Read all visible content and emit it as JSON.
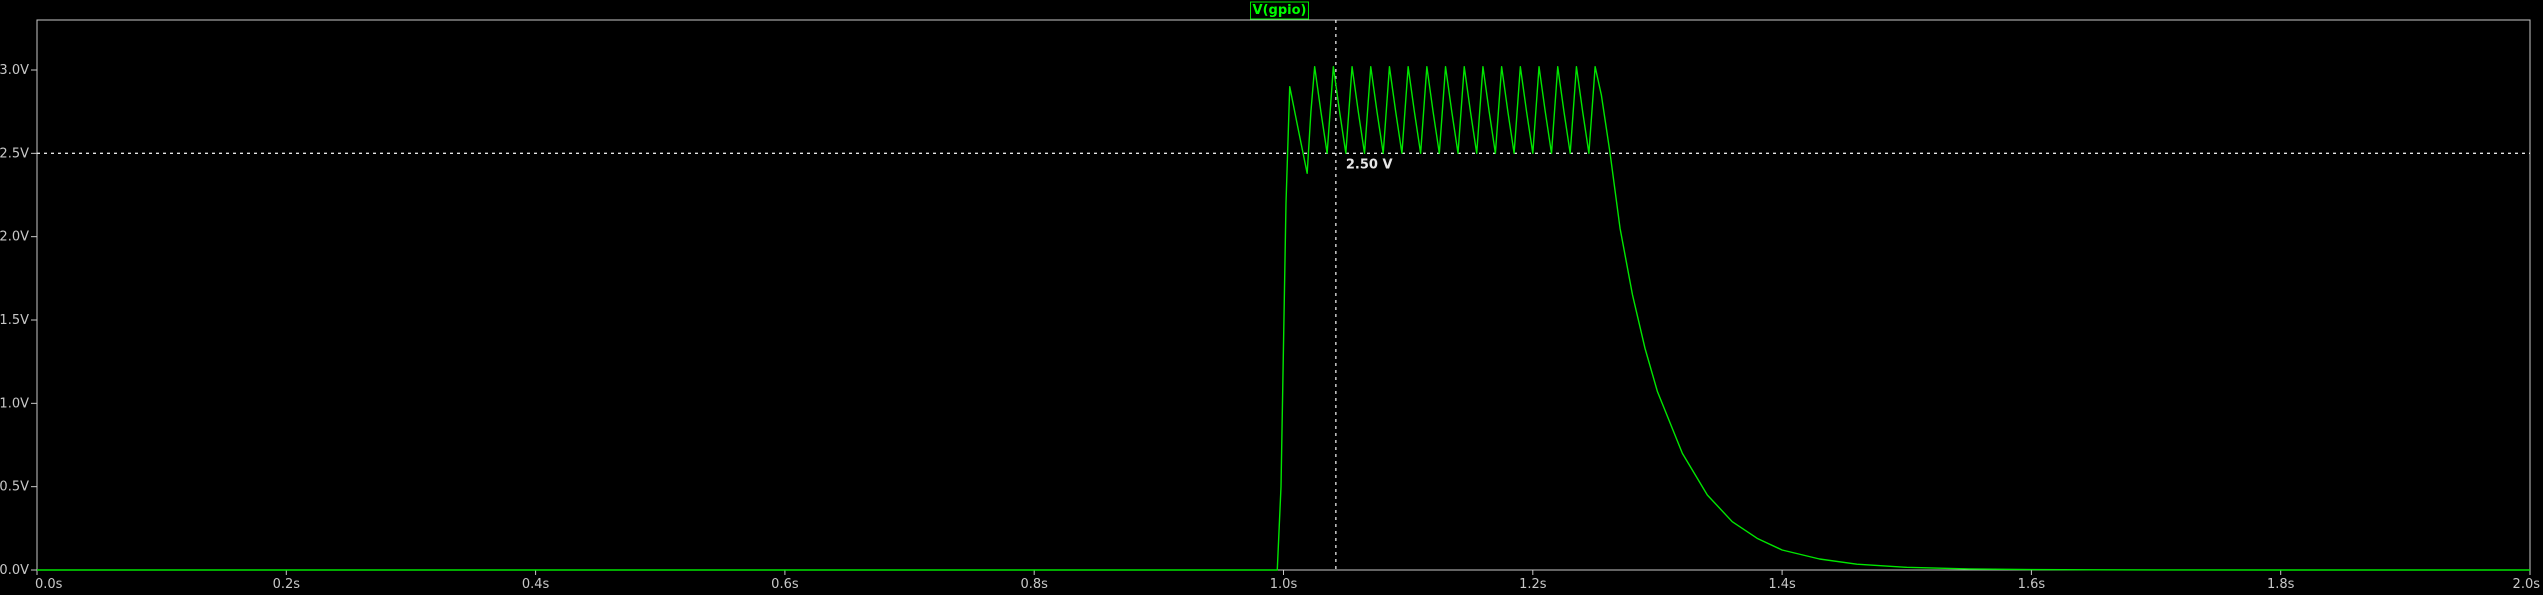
{
  "chart_data": {
    "type": "line",
    "title": "V(gpio)",
    "xlim": [
      0,
      2.0
    ],
    "ylim": [
      0,
      3.3
    ],
    "x_ticks": [
      0,
      0.2,
      0.4,
      0.6,
      0.8,
      1.0,
      1.2,
      1.4,
      1.6,
      1.8,
      2.0
    ],
    "x_tick_labels": [
      "0.0s",
      "0.2s",
      "0.4s",
      "0.6s",
      "0.8s",
      "1.0s",
      "1.2s",
      "1.4s",
      "1.6s",
      "1.8s",
      "2.0s"
    ],
    "y_ticks": [
      0,
      0.5,
      1.0,
      1.5,
      2.0,
      2.5,
      3.0
    ],
    "y_tick_labels": [
      "0.0V",
      "0.5V",
      "1.0V",
      "1.5V",
      "2.0V",
      "2.5V",
      "3.0V"
    ],
    "grid": false,
    "colors": {
      "background": "#000000",
      "trace": "#00e600",
      "axes": "#c8c8c8",
      "cursor": "#e6e6e6"
    },
    "series": [
      {
        "name": "V(gpio)",
        "x": [
          0.0,
          0.995,
          0.998,
          1.002,
          1.005,
          1.013,
          1.019,
          1.022,
          1.025,
          1.03,
          1.035,
          1.04,
          1.045,
          1.05,
          1.055,
          1.06,
          1.065,
          1.07,
          1.075,
          1.08,
          1.085,
          1.09,
          1.095,
          1.1,
          1.105,
          1.11,
          1.115,
          1.12,
          1.125,
          1.13,
          1.135,
          1.14,
          1.145,
          1.15,
          1.155,
          1.16,
          1.165,
          1.17,
          1.175,
          1.18,
          1.185,
          1.19,
          1.195,
          1.2,
          1.205,
          1.21,
          1.215,
          1.22,
          1.225,
          1.23,
          1.235,
          1.24,
          1.245,
          1.25,
          1.255,
          1.262,
          1.27,
          1.28,
          1.29,
          1.3,
          1.32,
          1.34,
          1.36,
          1.38,
          1.4,
          1.43,
          1.46,
          1.5,
          1.55,
          1.6,
          1.65,
          1.7,
          1.8,
          1.9,
          2.0
        ],
        "y": [
          0.0,
          0.0,
          0.5,
          2.2,
          2.9,
          2.6,
          2.38,
          2.75,
          3.02,
          2.75,
          2.5,
          3.02,
          2.75,
          2.5,
          3.02,
          2.75,
          2.5,
          3.02,
          2.75,
          2.5,
          3.02,
          2.75,
          2.5,
          3.02,
          2.75,
          2.5,
          3.02,
          2.75,
          2.5,
          3.02,
          2.75,
          2.5,
          3.02,
          2.75,
          2.5,
          3.02,
          2.75,
          2.5,
          3.02,
          2.75,
          2.5,
          3.02,
          2.75,
          2.5,
          3.02,
          2.75,
          2.5,
          3.02,
          2.75,
          2.5,
          3.02,
          2.75,
          2.5,
          3.02,
          2.85,
          2.5,
          2.05,
          1.65,
          1.33,
          1.07,
          0.7,
          0.45,
          0.29,
          0.19,
          0.12,
          0.066,
          0.035,
          0.016,
          0.0065,
          0.0026,
          0.001,
          0.0004,
          0.0,
          0.0,
          0.0
        ]
      }
    ],
    "cursor": {
      "x": 1.042,
      "y": 2.5,
      "label": "2.50 V"
    }
  }
}
